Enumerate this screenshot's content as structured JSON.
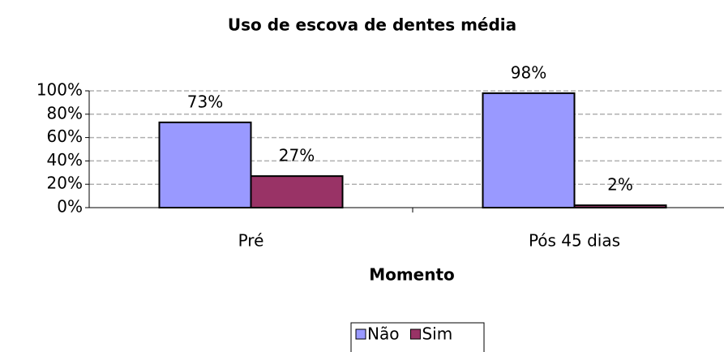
{
  "chart_data": {
    "type": "bar",
    "title": "Uso de escova de dentes média",
    "xlabel": "Momento",
    "categories": [
      "Pré",
      "Pós 45 dias"
    ],
    "series": [
      {
        "name": "Não",
        "color": "#9999ff",
        "values": [
          73,
          98
        ],
        "value_labels": [
          "73%",
          "98%"
        ]
      },
      {
        "name": "Sim",
        "color": "#993366",
        "values": [
          27,
          2
        ],
        "value_labels": [
          "27%",
          "2%"
        ]
      }
    ],
    "ylim": [
      0,
      100
    ],
    "yticks": [
      {
        "value": 0,
        "label": "0%"
      },
      {
        "value": 20,
        "label": "20%"
      },
      {
        "value": 40,
        "label": "40%"
      },
      {
        "value": 60,
        "label": "60%"
      },
      {
        "value": 80,
        "label": "80%"
      },
      {
        "value": 100,
        "label": "100%"
      }
    ],
    "grid": true,
    "legend": "bottom"
  }
}
